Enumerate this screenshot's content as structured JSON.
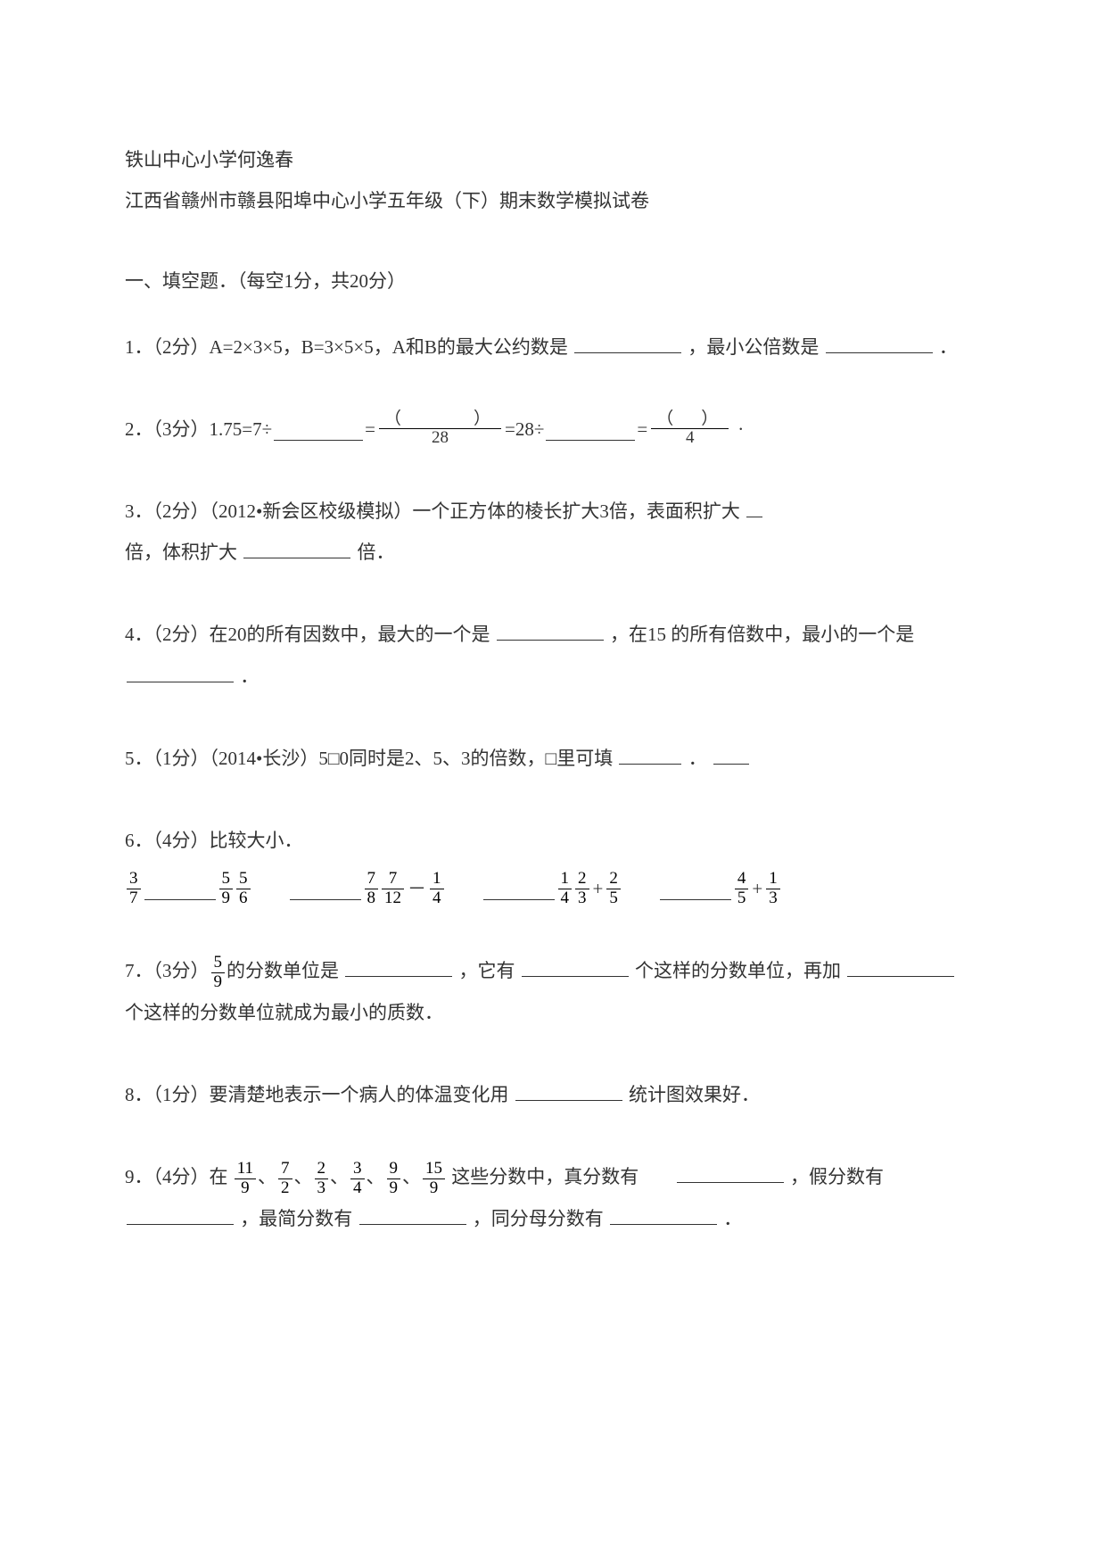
{
  "header": {
    "school_teacher": "铁山中心小学何逸春",
    "title": "江西省赣州市赣县阳埠中心小学五年级（下）期末数学模拟试卷"
  },
  "section1": {
    "heading": "一、填空题．（每空1分，共20分）",
    "q1_text_a": "1．（2分）A=2×3×5，B=3×5×5，A和B的最大公约数是",
    "q1_text_b": "，最小公倍数是",
    "q1_text_c": "．",
    "q2_prefix": "2．（3分）1.75=7÷",
    "q2_eq1": "=",
    "q2_frac1_num": "（　　　）",
    "q2_frac1_den": "28",
    "q2_mid": "=28÷",
    "q2_eq2": "=",
    "q2_frac2_num": "（　）",
    "q2_frac2_den": "4",
    "q3_text_a": "3．（2分）（2012•新会区校级模拟）一个正方体的棱长扩大3倍，表面积扩大",
    "q3_text_b": "倍，体积扩大",
    "q3_text_c": "倍．",
    "q4_text_a": "4．（2分）在20的所有因数中，最大的一个是",
    "q4_text_b": "，在15 的所有倍数中，最小的一个是",
    "q4_text_c": "．",
    "q5_text_a": "5．（1分）（2014•长沙）5□0同时是2、5、3的倍数，□里可填",
    "q5_text_b": "．",
    "q6_heading": "6．（4分）比较大小．",
    "q6": {
      "f1n": "3",
      "f1d": "7",
      "f2n": "5",
      "f2d": "9",
      "f3n": "5",
      "f3d": "6",
      "f4n": "7",
      "f4d": "8",
      "f5n": "7",
      "f5d": "12",
      "minus": "－",
      "f6n": "1",
      "f6d": "4",
      "f7n": "1",
      "f7d": "4",
      "f8n": "2",
      "f8d": "3",
      "plus": "+",
      "f9n": "2",
      "f9d": "5",
      "f10n": "4",
      "f10d": "5",
      "f11n": "1",
      "f11d": "3"
    },
    "q7_text_a": "7．（3分）",
    "q7_frac_n": "5",
    "q7_frac_d": "9",
    "q7_text_b": "的分数单位是",
    "q7_text_c": "，它有",
    "q7_text_d": "个这样的分数单位，再加",
    "q7_text_e": "个这样的分数单位就成为最小的质数．",
    "q8_text_a": "8．（1分）要清楚地表示一个病人的体温变化用",
    "q8_text_b": "统计图效果好．",
    "q9_text_a": "9．（4分）在",
    "q9_fracs": [
      {
        "n": "11",
        "d": "9"
      },
      {
        "n": "7",
        "d": "2"
      },
      {
        "n": "2",
        "d": "3"
      },
      {
        "n": "3",
        "d": "4"
      },
      {
        "n": "9",
        "d": "9"
      },
      {
        "n": "15",
        "d": "9"
      }
    ],
    "q9_sep": "、",
    "q9_text_b": "这些分数中，真分数有",
    "q9_text_c": "，假分数有",
    "q9_text_d": "，最简分数有",
    "q9_text_e": "，同分母分数有",
    "q9_text_f": "．"
  }
}
